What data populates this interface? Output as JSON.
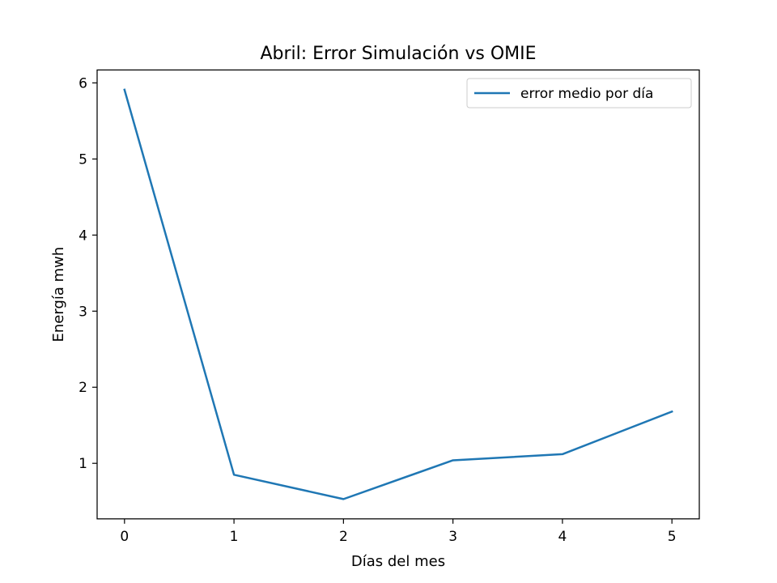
{
  "chart_data": {
    "type": "line",
    "title": "Abril: Error Simulación vs OMIE",
    "xlabel": "Días del mes",
    "ylabel": "Energía mwh",
    "xlim": [
      -0.25,
      5.25
    ],
    "ylim": [
      0.27,
      6.17
    ],
    "xticks": [
      0,
      1,
      2,
      3,
      4,
      5
    ],
    "yticks": [
      1,
      2,
      3,
      4,
      5,
      6
    ],
    "grid": false,
    "legend_position": "upper-right",
    "series": [
      {
        "name": "error medio por día",
        "color": "#1f77b4",
        "x": [
          0,
          1,
          2,
          3,
          4,
          5
        ],
        "y": [
          5.91,
          0.85,
          0.53,
          1.04,
          1.12,
          1.68
        ]
      }
    ]
  }
}
